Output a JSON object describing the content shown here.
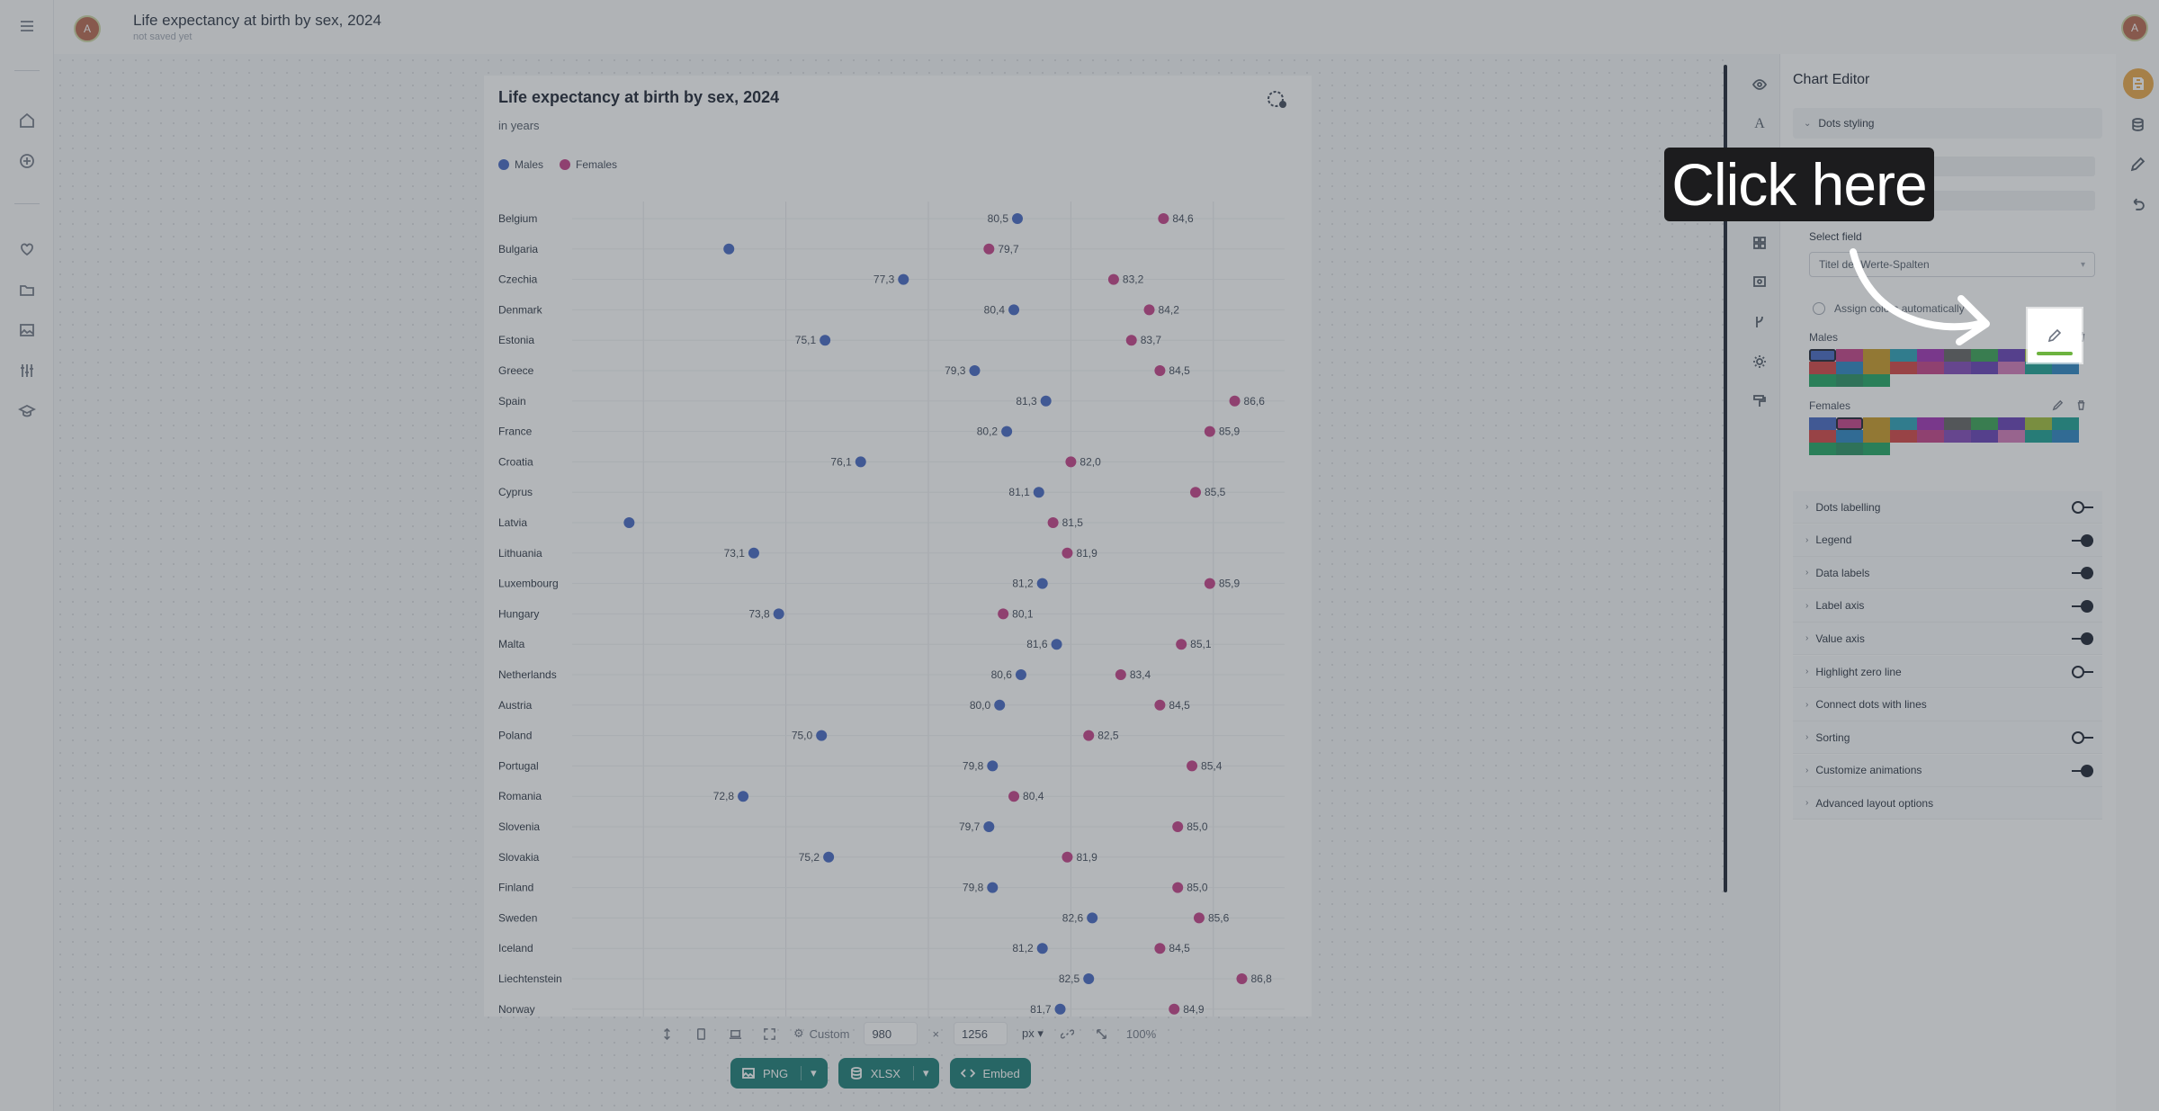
{
  "app": {
    "doc_title": "Life expectancy at birth by sex, 2024",
    "doc_status": "not saved yet",
    "avatar_initial": "A"
  },
  "left_nav": {
    "icons": [
      "menu-icon",
      "home-icon",
      "add-circle-icon",
      "heart-icon",
      "folder-icon",
      "image-icon",
      "sliders-icon",
      "graduation-cap-icon"
    ]
  },
  "chart": {
    "title": "Life expectancy at birth by sex, 2024",
    "subtitle": "in years",
    "legend": [
      {
        "label": "Males",
        "color": "#3b5fc0"
      },
      {
        "label": "Females",
        "color": "#c23682"
      }
    ]
  },
  "chart_data": {
    "type": "scatter",
    "style": "dot-plot",
    "title": "Life expectancy at birth by sex, 2024",
    "subtitle": "in years",
    "legend_position": "top-left",
    "grid": true,
    "xlim": [
      68,
      88
    ],
    "categories": [
      "Belgium",
      "Bulgaria",
      "Czechia",
      "Denmark",
      "Estonia",
      "Greece",
      "Spain",
      "France",
      "Croatia",
      "Cyprus",
      "Latvia",
      "Lithuania",
      "Luxembourg",
      "Hungary",
      "Malta",
      "Netherlands",
      "Austria",
      "Poland",
      "Portugal",
      "Romania",
      "Slovenia",
      "Slovakia",
      "Finland",
      "Sweden",
      "Iceland",
      "Liechtenstein",
      "Norway"
    ],
    "series": [
      {
        "name": "Males",
        "color": "#3b5fc0",
        "values": [
          80.5,
          72.4,
          77.3,
          80.4,
          75.1,
          79.3,
          81.3,
          80.2,
          76.1,
          81.1,
          69.6,
          73.1,
          81.2,
          73.8,
          81.6,
          80.6,
          80.0,
          75.0,
          79.8,
          72.8,
          79.7,
          75.2,
          79.8,
          82.6,
          81.2,
          82.5,
          81.7
        ],
        "labels": [
          "80,5",
          "",
          "77,3",
          "80,4",
          "75,1",
          "79,3",
          "81,3",
          "80,2",
          "76,1",
          "81,1",
          "",
          "73,1",
          "81,2",
          "73,8",
          "81,6",
          "80,6",
          "80,0",
          "75,0",
          "79,8",
          "72,8",
          "79,7",
          "75,2",
          "79,8",
          "82,6",
          "81,2",
          "82,5",
          "81,7"
        ]
      },
      {
        "name": "Females",
        "color": "#c23682",
        "values": [
          84.6,
          79.7,
          83.2,
          84.2,
          83.7,
          84.5,
          86.6,
          85.9,
          82.0,
          85.5,
          81.5,
          81.9,
          85.9,
          80.1,
          85.1,
          83.4,
          84.5,
          82.5,
          85.4,
          80.4,
          85.0,
          81.9,
          85.0,
          85.6,
          84.5,
          86.8,
          84.9
        ],
        "labels": [
          "84,6",
          "79,7",
          "83,2",
          "84,2",
          "83,7",
          "84,5",
          "86,6",
          "85,9",
          "82,0",
          "85,5",
          "81,5",
          "81,9",
          "85,9",
          "80,1",
          "85,1",
          "83,4",
          "84,5",
          "82,5",
          "85,4",
          "80,4",
          "85,0",
          "81,9",
          "85,0",
          "85,6",
          "84,5",
          "86,8",
          "84,9"
        ]
      }
    ]
  },
  "size_bar": {
    "preset": "Custom",
    "width": "980",
    "times": "×",
    "height": "1256",
    "unit": "px",
    "zoom": "100%"
  },
  "export": {
    "png": "PNG",
    "xlsx": "XLSX",
    "embed": "Embed"
  },
  "editor": {
    "title": "Chart Editor",
    "dots_styling": "Dots styling",
    "select_field_label": "Select field",
    "select_field_value": "Titel der Werte-Spalten",
    "assign_label": "Assign colors automatically",
    "males_label": "Males",
    "females_label": "Females",
    "palette": [
      "#3b5fc0",
      "#c23682",
      "#c7941a",
      "#1f9bb4",
      "#9c27b0",
      "#5b5b5b",
      "#2e9d4a",
      "#5e35b1",
      "#9cba2f",
      "#0f9b8e",
      "#d13a3a",
      "#1f7fc0",
      "#c7941a",
      "#d13a3a",
      "#c23682",
      "#7b3fb5",
      "#5e35b1",
      "#d173b5",
      "#0f9b8e",
      "#1f7fc0",
      "#14a05a",
      "#1d8a5a",
      "#14a05a"
    ],
    "options": [
      {
        "label": "Dots labelling",
        "toggle": "off"
      },
      {
        "label": "Legend",
        "toggle": "on"
      },
      {
        "label": "Data labels",
        "toggle": "on"
      },
      {
        "label": "Label axis",
        "toggle": "on"
      },
      {
        "label": "Value axis",
        "toggle": "on"
      },
      {
        "label": "Highlight zero line",
        "toggle": "off"
      },
      {
        "label": "Connect dots with lines",
        "toggle": "none"
      },
      {
        "label": "Sorting",
        "toggle": "off"
      },
      {
        "label": "Customize animations",
        "toggle": "on"
      },
      {
        "label": "Advanced layout options",
        "toggle": "none"
      }
    ]
  },
  "tutorial": {
    "callout_text": "Click here"
  }
}
